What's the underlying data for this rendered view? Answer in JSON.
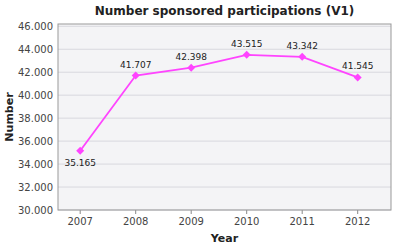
{
  "chart_data": {
    "type": "line",
    "title": "Number sponsored participations (V1)",
    "xlabel": "Year",
    "ylabel": "Number",
    "x": [
      2007,
      2008,
      2009,
      2010,
      2011,
      2012
    ],
    "values": [
      35165,
      41707,
      42398,
      43515,
      43342,
      41545
    ],
    "value_labels": [
      "35.165",
      "41.707",
      "42.398",
      "43.515",
      "43.342",
      "41.545"
    ],
    "data_labels": true,
    "color": "#ff44ff",
    "marker": "diamond",
    "line_style": "solid",
    "xlim": [
      2006.6,
      2012.6
    ],
    "xticks": [
      2007,
      2008,
      2009,
      2010,
      2011,
      2012
    ],
    "ylim": [
      30000,
      46200
    ],
    "yticks": [
      {
        "value": 30000,
        "label": "30.000"
      },
      {
        "value": 32000,
        "label": "32.000"
      },
      {
        "value": 34000,
        "label": "34.000"
      },
      {
        "value": 36000,
        "label": "36.000"
      },
      {
        "value": 38000,
        "label": "38.000"
      },
      {
        "value": 40000,
        "label": "40.000"
      },
      {
        "value": 42000,
        "label": "42.000"
      },
      {
        "value": 44000,
        "label": "44.000"
      },
      {
        "value": 46000,
        "label": "46.000"
      }
    ],
    "grid": true
  }
}
